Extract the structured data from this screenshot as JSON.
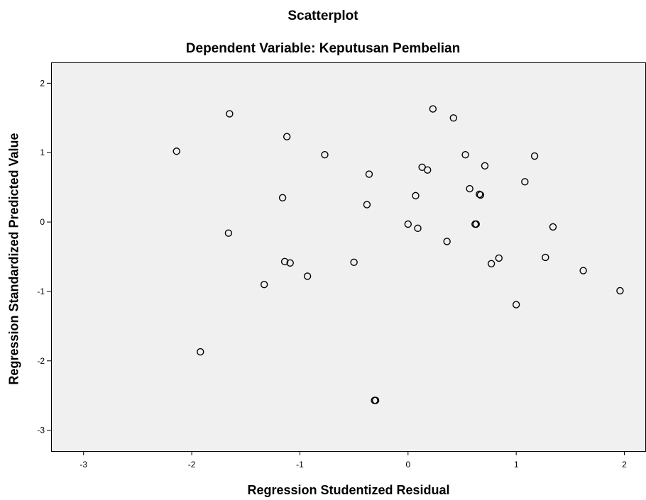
{
  "chart_data": {
    "type": "scatter",
    "title": "Scatterplot",
    "subtitle": "Dependent Variable: Keputusan Pembelian",
    "xlabel": "Regression Studentized Residual",
    "ylabel": "Regression Standardized Predicted Value",
    "xlim": [
      -3.3,
      2.2
    ],
    "ylim": [
      -3.3,
      2.3
    ],
    "xticks": [
      -3,
      -2,
      -1,
      0,
      1,
      2
    ],
    "yticks": [
      -3,
      -2,
      -1,
      0,
      1,
      2
    ],
    "xtick_labels": [
      "-3",
      "-2",
      "-1",
      "0",
      "1",
      "2"
    ],
    "ytick_labels": [
      "-3",
      "-2",
      "-1",
      "0",
      "1",
      "2"
    ],
    "grid": false,
    "plot_background": "#f0f0f0",
    "marker_color": "#000000",
    "points": [
      {
        "x": -2.14,
        "y": 1.02
      },
      {
        "x": -1.92,
        "y": -1.87
      },
      {
        "x": -1.65,
        "y": 1.56
      },
      {
        "x": -1.66,
        "y": -0.16
      },
      {
        "x": -1.33,
        "y": -0.9
      },
      {
        "x": -1.16,
        "y": 0.35
      },
      {
        "x": -1.14,
        "y": -0.57
      },
      {
        "x": -1.12,
        "y": 1.23
      },
      {
        "x": -1.09,
        "y": -0.59
      },
      {
        "x": -0.93,
        "y": -0.78
      },
      {
        "x": -0.77,
        "y": 0.97
      },
      {
        "x": -0.5,
        "y": -0.58
      },
      {
        "x": -0.38,
        "y": 0.25
      },
      {
        "x": -0.36,
        "y": 0.69
      },
      {
        "x": -0.31,
        "y": -2.57
      },
      {
        "x": -0.3,
        "y": -2.57
      },
      {
        "x": 0.0,
        "y": -0.03
      },
      {
        "x": 0.07,
        "y": 0.38
      },
      {
        "x": 0.09,
        "y": -0.09
      },
      {
        "x": 0.13,
        "y": 0.79
      },
      {
        "x": 0.18,
        "y": 0.75
      },
      {
        "x": 0.23,
        "y": 1.63
      },
      {
        "x": 0.36,
        "y": -0.28
      },
      {
        "x": 0.42,
        "y": 1.5
      },
      {
        "x": 0.53,
        "y": 0.97
      },
      {
        "x": 0.57,
        "y": 0.48
      },
      {
        "x": 0.62,
        "y": -0.03
      },
      {
        "x": 0.63,
        "y": -0.03
      },
      {
        "x": 0.66,
        "y": 0.4
      },
      {
        "x": 0.67,
        "y": 0.39
      },
      {
        "x": 0.71,
        "y": 0.81
      },
      {
        "x": 0.77,
        "y": -0.6
      },
      {
        "x": 0.84,
        "y": -0.52
      },
      {
        "x": 1.0,
        "y": -1.19
      },
      {
        "x": 1.08,
        "y": 0.58
      },
      {
        "x": 1.17,
        "y": 0.95
      },
      {
        "x": 1.27,
        "y": -0.51
      },
      {
        "x": 1.34,
        "y": -0.07
      },
      {
        "x": 1.62,
        "y": -0.7
      },
      {
        "x": 1.96,
        "y": -0.99
      }
    ]
  }
}
